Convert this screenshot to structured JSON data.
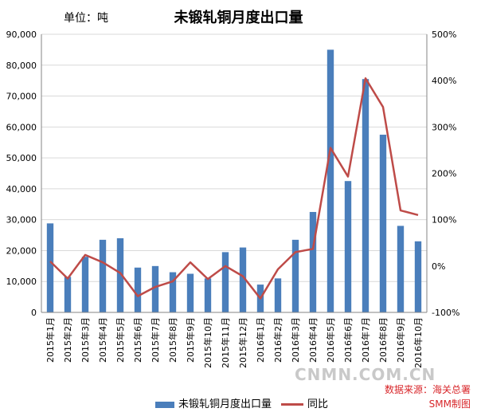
{
  "header": {
    "unit": "单位：吨",
    "title": "未锻轧铜月度出口量"
  },
  "legend": {
    "bar_label": "未锻轧铜月度出口量",
    "line_label": "同比"
  },
  "source": {
    "line1": "数据来源：海关总署",
    "line2": "SMM制图"
  },
  "watermark": "CNMN.COM.CN",
  "colors": {
    "bar": "#4a7ebb",
    "line": "#be4b48"
  },
  "chart_data": {
    "type": "bar",
    "title": "未锻轧铜月度出口量",
    "ylabel": "单位：吨",
    "categories": [
      "2015年1月",
      "2015年2月",
      "2015年3月",
      "2015年4月",
      "2015年5月",
      "2015年6月",
      "2015年7月",
      "2015年8月",
      "2015年9月",
      "2015年10月",
      "2015年11月",
      "2015年12月",
      "2016年1月",
      "2016年2月",
      "2016年3月",
      "2016年4月",
      "2016年5月",
      "2016年6月",
      "2016年7月",
      "2016年8月",
      "2016年9月",
      "2016年10月"
    ],
    "ylim": [
      0,
      90000
    ],
    "yticks": [
      "0",
      "10,000",
      "20,000",
      "30,000",
      "40,000",
      "50,000",
      "60,000",
      "70,000",
      "80,000",
      "90,000"
    ],
    "y2lim": [
      -100,
      500
    ],
    "y2ticks": [
      "-100%",
      "0%",
      "100%",
      "200%",
      "300%",
      "400%",
      "500%"
    ],
    "series": [
      {
        "name": "未锻轧铜月度出口量",
        "type": "bar",
        "axis": "left",
        "values": [
          28800,
          11500,
          18000,
          23500,
          24000,
          14500,
          15000,
          13000,
          12500,
          11000,
          19500,
          21000,
          9000,
          11000,
          23500,
          32500,
          85000,
          42500,
          75500,
          57500,
          28000,
          23000
        ]
      },
      {
        "name": "同比",
        "type": "line",
        "axis": "right",
        "values": [
          10,
          -27,
          24,
          8,
          -15,
          -65,
          -45,
          -33,
          8,
          -28,
          0,
          -22,
          -70,
          -7,
          30,
          37,
          255,
          193,
          405,
          343,
          120,
          110
        ]
      }
    ]
  }
}
